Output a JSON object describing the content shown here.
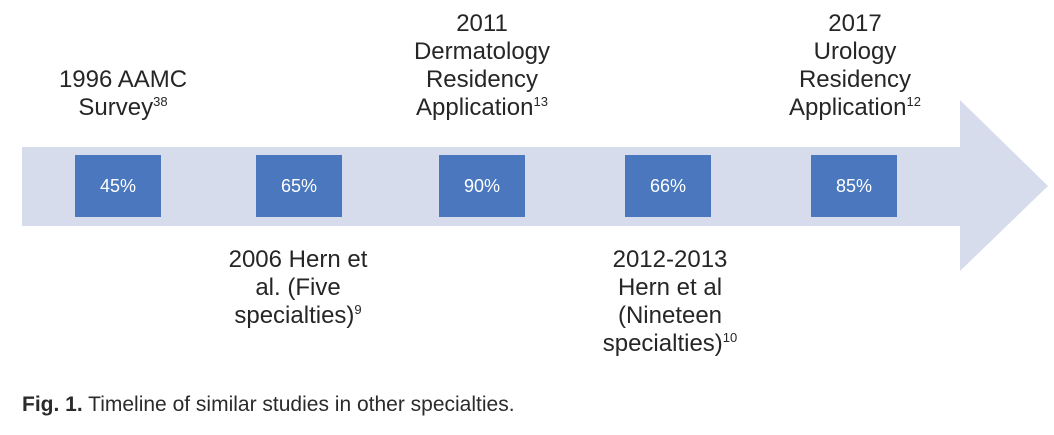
{
  "colors": {
    "arrow": "#d7dcec",
    "box": "#4a77bd",
    "box_text": "#ffffff"
  },
  "milestones": [
    {
      "value": "45%",
      "lines": [
        "1996 AAMC",
        "Survey"
      ],
      "ref": "38"
    },
    {
      "value": "65%",
      "lines": [
        "2006 Hern et",
        "al. (Five",
        "specialties)"
      ],
      "ref": "9"
    },
    {
      "value": "90%",
      "lines": [
        "2011",
        "Dermatology",
        "Residency",
        "Application"
      ],
      "ref": "13"
    },
    {
      "value": "66%",
      "lines": [
        "2012-2013",
        "Hern et al",
        "(Nineteen",
        "specialties)"
      ],
      "ref": "10"
    },
    {
      "value": "85%",
      "lines": [
        "2017",
        "Urology",
        "Residency",
        "Application"
      ],
      "ref": "12"
    }
  ],
  "caption": {
    "label": "Fig. 1.",
    "text": "Timeline of similar studies in other specialties."
  }
}
